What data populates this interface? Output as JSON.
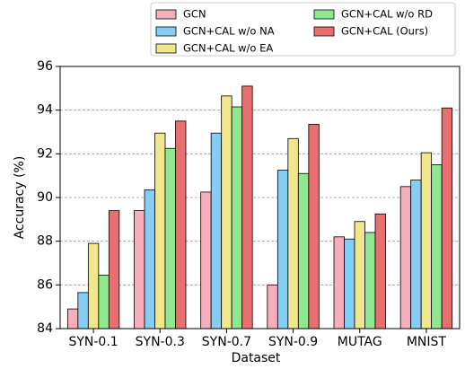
{
  "chart_data": {
    "type": "bar",
    "x_label": "Dataset",
    "y_label": "Accuracy (%)",
    "categories": [
      "SYN-0.1",
      "SYN-0.3",
      "SYN-0.7",
      "SYN-0.9",
      "MUTAG",
      "MNIST"
    ],
    "series": [
      {
        "name": "GCN",
        "color": "#f6aebb",
        "values": [
          84.9,
          89.4,
          90.25,
          86.0,
          88.2,
          90.5
        ]
      },
      {
        "name": "GCN+CAL w/o NA",
        "color": "#86cdf6",
        "values": [
          85.65,
          90.35,
          92.95,
          91.25,
          88.1,
          90.8
        ]
      },
      {
        "name": "GCN+CAL w/o EA",
        "color": "#f0e68c",
        "values": [
          87.9,
          92.95,
          94.65,
          92.7,
          88.9,
          92.05
        ]
      },
      {
        "name": "GCN+CAL w/o RD",
        "color": "#8fe88f",
        "values": [
          86.45,
          92.25,
          94.15,
          91.1,
          88.4,
          91.5
        ]
      },
      {
        "name": "GCN+CAL (Ours)",
        "color": "#e86f6f",
        "values": [
          89.4,
          93.5,
          95.1,
          93.35,
          89.25,
          94.1
        ]
      }
    ],
    "ylim": [
      84,
      96
    ],
    "yticks": [
      84,
      86,
      88,
      90,
      92,
      94,
      96
    ],
    "grid": true
  }
}
